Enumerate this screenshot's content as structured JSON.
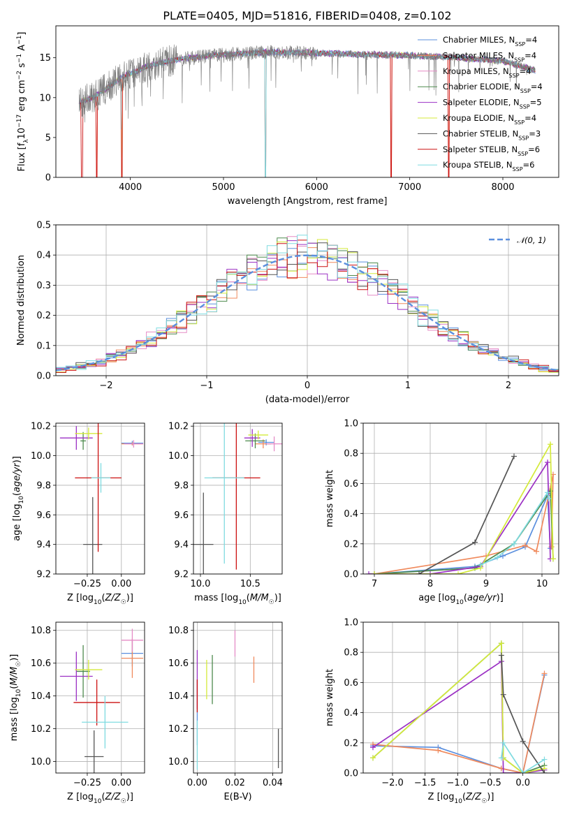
{
  "title": "PLATE=0405, MJD=51816, FIBERID=0408, z=0.102",
  "models": [
    {
      "name": "Chabrier MILES",
      "nssp": "4",
      "color": "#5b8fde"
    },
    {
      "name": "Salpeter MILES",
      "nssp": "4",
      "color": "#f08a5d"
    },
    {
      "name": "Kroupa MILES",
      "nssp": "4",
      "color": "#e58bc6"
    },
    {
      "name": "Chabrier ELODIE",
      "nssp": "4",
      "color": "#4d8a4d"
    },
    {
      "name": "Salpeter ELODIE",
      "nssp": "5",
      "color": "#9b30c4"
    },
    {
      "name": "Kroupa ELODIE",
      "nssp": "4",
      "color": "#d4ea3a"
    },
    {
      "name": "Chabrier STELIB",
      "nssp": "3",
      "color": "#555555"
    },
    {
      "name": "Salpeter STELIB",
      "nssp": "6",
      "color": "#cc1111"
    },
    {
      "name": "Kroupa STELIB",
      "nssp": "6",
      "color": "#7fdbe0"
    }
  ],
  "chart_data": [
    {
      "id": "spectrum",
      "type": "line",
      "xlabel": "wavelength [Angstrom, rest frame]",
      "ylabel": "Flux [f_λ 10^-17 erg cm^-2 s^-1 A^-1]",
      "xlim": [
        3200,
        8600
      ],
      "ylim": [
        0,
        19
      ],
      "xticks": [
        4000,
        5000,
        6000,
        7000,
        8000
      ],
      "yticks": [
        0,
        5,
        10,
        15
      ],
      "continuum": [
        [
          3450,
          9.5
        ],
        [
          3600,
          10.0
        ],
        [
          3750,
          11.2
        ],
        [
          3900,
          12.5
        ],
        [
          4000,
          13.0
        ],
        [
          4200,
          14.0
        ],
        [
          4500,
          14.8
        ],
        [
          5000,
          15.4
        ],
        [
          5500,
          15.7
        ],
        [
          6000,
          15.6
        ],
        [
          6500,
          15.4
        ],
        [
          7000,
          15.3
        ],
        [
          7500,
          15.0
        ],
        [
          8000,
          14.6
        ],
        [
          8350,
          13.4
        ]
      ],
      "drops": [
        3480,
        3640,
        3910,
        5450,
        6800,
        7420
      ]
    },
    {
      "id": "residuals",
      "type": "line",
      "xlabel": "(data-model)/error",
      "ylabel": "Normed distribution",
      "xlim": [
        -2.5,
        2.5
      ],
      "ylim": [
        0,
        0.5
      ],
      "xticks": [
        -2,
        -1,
        0,
        1,
        2
      ],
      "yticks": [
        0.0,
        0.1,
        0.2,
        0.3,
        0.4,
        0.5
      ],
      "legend": "𝒩(0, 1)",
      "reference": {
        "name": "𝒩(0, 1)",
        "color": "#5b8fde",
        "dash": true
      }
    },
    {
      "id": "age-vs-Z",
      "type": "scatter",
      "xlabel": "Z [log10(Z/Z☉)]",
      "ylabel": "age [log10(age/yr)]",
      "xlim": [
        -0.48,
        0.17
      ],
      "ylim": [
        9.2,
        10.22
      ],
      "xticks": [
        -0.25,
        0.0
      ],
      "yticks": [
        9.2,
        9.4,
        9.6,
        9.8,
        10.0,
        10.2
      ],
      "points": [
        {
          "m": 0,
          "x": 0.08,
          "y": 10.085,
          "ex": 0.08,
          "ey": 0.015
        },
        {
          "m": 1,
          "x": 0.08,
          "y": 10.08,
          "ex": 0.08,
          "ey": 0.01
        },
        {
          "m": 2,
          "x": 0.09,
          "y": 10.08,
          "ex": 0.07,
          "ey": 0.025
        },
        {
          "m": 3,
          "x": -0.28,
          "y": 10.1,
          "ex": 0.02,
          "ey": 0.06
        },
        {
          "m": 4,
          "x": -0.33,
          "y": 10.12,
          "ex": 0.12,
          "ey": 0.08
        },
        {
          "m": 5,
          "x": -0.24,
          "y": 10.15,
          "ex": 0.1,
          "ey": 0.04
        },
        {
          "m": 6,
          "x": -0.21,
          "y": 9.4,
          "ex": 0.07,
          "ey": 0.32
        },
        {
          "m": 7,
          "x": -0.17,
          "y": 9.85,
          "ex": 0.17,
          "ey": 0.5
        },
        {
          "m": 8,
          "x": -0.15,
          "y": 9.85,
          "ex": 0.07,
          "ey": 0.1
        }
      ]
    },
    {
      "id": "age-vs-mass",
      "type": "scatter",
      "xlabel": "mass [log10(M/M☉)]",
      "ylabel": "",
      "xlim": [
        9.93,
        10.82
      ],
      "ylim": [
        9.2,
        10.22
      ],
      "xticks": [
        10.0,
        10.5
      ],
      "yticks": [
        9.2,
        9.4,
        9.6,
        9.8,
        10.0,
        10.2
      ],
      "points": [
        {
          "m": 0,
          "x": 10.66,
          "y": 10.09,
          "ex": 0.08,
          "ey": 0.02
        },
        {
          "m": 1,
          "x": 10.63,
          "y": 10.08,
          "ex": 0.08,
          "ey": 0.03
        },
        {
          "m": 2,
          "x": 10.74,
          "y": 10.08,
          "ex": 0.08,
          "ey": 0.05
        },
        {
          "m": 3,
          "x": 10.55,
          "y": 10.1,
          "ex": 0.1,
          "ey": 0.05
        },
        {
          "m": 4,
          "x": 10.52,
          "y": 10.12,
          "ex": 0.08,
          "ey": 0.06
        },
        {
          "m": 5,
          "x": 10.58,
          "y": 10.14,
          "ex": 0.1,
          "ey": 0.03
        },
        {
          "m": 6,
          "x": 10.03,
          "y": 9.4,
          "ex": 0.1,
          "ey": 0.35
        },
        {
          "m": 7,
          "x": 10.36,
          "y": 9.85,
          "ex": 0.24,
          "ey": 0.62
        },
        {
          "m": 8,
          "x": 10.24,
          "y": 9.85,
          "ex": 0.2,
          "ey": 0.58
        }
      ]
    },
    {
      "id": "weight-vs-age",
      "type": "line",
      "xlabel": "age [log10(age/yr)]",
      "ylabel": "mass weight",
      "xlim": [
        6.8,
        10.3
      ],
      "ylim": [
        0,
        1.0
      ],
      "xticks": [
        7,
        8,
        9,
        10
      ],
      "yticks": [
        0.0,
        0.2,
        0.4,
        0.6,
        0.8,
        1.0
      ],
      "series": [
        {
          "m": 0,
          "x": [
            7.0,
            8.8,
            9.3,
            9.7,
            10.1,
            10.15
          ],
          "y": [
            0.0,
            0.05,
            0.12,
            0.18,
            0.52,
            0.17
          ]
        },
        {
          "m": 1,
          "x": [
            7.0,
            9.0,
            9.7,
            9.9,
            10.2,
            10.17
          ],
          "y": [
            0.0,
            0.12,
            0.19,
            0.15,
            0.66,
            0.18
          ]
        },
        {
          "m": 3,
          "x": [
            7.0,
            8.8,
            9.5,
            10.15,
            10.2
          ],
          "y": [
            0.0,
            0.04,
            0.2,
            0.55,
            0.1
          ]
        },
        {
          "m": 4,
          "x": [
            6.9,
            8.0,
            8.9,
            10.1,
            10.15
          ],
          "y": [
            0.0,
            0.0,
            0.05,
            0.74,
            0.1
          ]
        },
        {
          "m": 5,
          "x": [
            7.0,
            8.5,
            8.9,
            10.15,
            10.2
          ],
          "y": [
            0.0,
            0.0,
            0.04,
            0.86,
            0.1
          ]
        },
        {
          "m": 6,
          "x": [
            7.8,
            8.8,
            9.5
          ],
          "y": [
            0.0,
            0.21,
            0.78
          ]
        },
        {
          "m": 8,
          "x": [
            8.9,
            9.2,
            9.5,
            10.1,
            10.12
          ],
          "y": [
            0.06,
            0.11,
            0.2,
            0.54,
            0.5
          ]
        }
      ]
    },
    {
      "id": "mass-vs-Z",
      "type": "scatter",
      "xlabel": "Z [log10(Z/Z☉)]",
      "ylabel": "mass [log10(M/M☉)]",
      "xlim": [
        -0.48,
        0.17
      ],
      "ylim": [
        9.93,
        10.85
      ],
      "xticks": [
        -0.25,
        0.0
      ],
      "yticks": [
        10.0,
        10.2,
        10.4,
        10.6,
        10.8
      ],
      "points": [
        {
          "m": 0,
          "x": 0.08,
          "y": 10.66,
          "ex": 0.08,
          "ey": 0.08
        },
        {
          "m": 1,
          "x": 0.08,
          "y": 10.63,
          "ex": 0.08,
          "ey": 0.12
        },
        {
          "m": 2,
          "x": 0.08,
          "y": 10.74,
          "ex": 0.08,
          "ey": 0.07
        },
        {
          "m": 3,
          "x": -0.28,
          "y": 10.55,
          "ex": 0.05,
          "ey": 0.16
        },
        {
          "m": 4,
          "x": -0.33,
          "y": 10.52,
          "ex": 0.12,
          "ey": 0.15
        },
        {
          "m": 5,
          "x": -0.24,
          "y": 10.56,
          "ex": 0.1,
          "ey": 0.06
        },
        {
          "m": 6,
          "x": -0.2,
          "y": 10.03,
          "ex": 0.07,
          "ey": 0.16
        },
        {
          "m": 7,
          "x": -0.18,
          "y": 10.36,
          "ex": 0.17,
          "ey": 0.14
        },
        {
          "m": 8,
          "x": -0.12,
          "y": 10.24,
          "ex": 0.17,
          "ey": 0.16
        }
      ]
    },
    {
      "id": "mass-vs-EBV",
      "type": "scatter",
      "xlabel": "E(B-V)",
      "ylabel": "",
      "xlim": [
        -0.002,
        0.045
      ],
      "ylim": [
        9.93,
        10.85
      ],
      "xticks": [
        0.0,
        0.02,
        0.04
      ],
      "yticks": [
        10.0,
        10.2,
        10.4,
        10.6,
        10.8
      ],
      "points": [
        {
          "m": 0,
          "x": 0.0,
          "y": 10.3,
          "ex": 0.0,
          "ey": 0.2
        },
        {
          "m": 1,
          "x": 0.03,
          "y": 10.56,
          "ex": 0.0,
          "ey": 0.08
        },
        {
          "m": 2,
          "x": 0.02,
          "y": 10.72,
          "ex": 0.0,
          "ey": 0.08
        },
        {
          "m": 3,
          "x": 0.008,
          "y": 10.5,
          "ex": 0.0,
          "ey": 0.15
        },
        {
          "m": 4,
          "x": 0.0,
          "y": 10.5,
          "ex": 0.0,
          "ey": 0.18
        },
        {
          "m": 5,
          "x": 0.005,
          "y": 10.5,
          "ex": 0.0,
          "ey": 0.12
        },
        {
          "m": 6,
          "x": 0.043,
          "y": 10.08,
          "ex": 0.0,
          "ey": 0.12
        },
        {
          "m": 7,
          "x": 0.0,
          "y": 10.4,
          "ex": 0.0,
          "ey": 0.1
        },
        {
          "m": 8,
          "x": 0.0,
          "y": 10.1,
          "ex": 0.0,
          "ey": 0.15
        }
      ]
    },
    {
      "id": "weight-vs-Z",
      "type": "line",
      "xlabel": "Z [log10(Z/Z☉)]",
      "ylabel": "mass weight",
      "xlim": [
        -2.45,
        0.55
      ],
      "ylim": [
        0,
        1.0
      ],
      "xticks": [
        -2.0,
        -1.5,
        -1.0,
        -0.5,
        0.0
      ],
      "yticks": [
        0.0,
        0.2,
        0.4,
        0.6,
        0.8,
        1.0
      ],
      "series": [
        {
          "m": 0,
          "x": [
            -2.3,
            -1.3,
            -0.33,
            0.0,
            0.33
          ],
          "y": [
            0.18,
            0.17,
            0.03,
            0.0,
            0.65
          ]
        },
        {
          "m": 1,
          "x": [
            -2.3,
            -1.3,
            -0.33,
            0.0,
            0.33
          ],
          "y": [
            0.19,
            0.15,
            0.03,
            0.0,
            0.66
          ]
        },
        {
          "m": 3,
          "x": [
            -2.3,
            -0.33,
            -0.3,
            0.0,
            0.33
          ],
          "y": [
            0.1,
            0.86,
            0.1,
            0.0,
            0.05
          ]
        },
        {
          "m": 4,
          "x": [
            -2.3,
            -0.33,
            -0.3,
            0.0,
            0.33
          ],
          "y": [
            0.17,
            0.74,
            0.0,
            0.0,
            0.02
          ]
        },
        {
          "m": 5,
          "x": [
            -2.3,
            -0.33,
            -0.3,
            0.0,
            0.33
          ],
          "y": [
            0.1,
            0.86,
            0.1,
            0.0,
            0.03
          ]
        },
        {
          "m": 6,
          "x": [
            -0.33,
            -0.3,
            0.0,
            0.33
          ],
          "y": [
            0.78,
            0.52,
            0.21,
            0.0
          ]
        },
        {
          "m": 8,
          "x": [
            -0.33,
            -0.3,
            0.0,
            0.33
          ],
          "y": [
            0.1,
            0.2,
            0.0,
            0.09
          ]
        }
      ]
    }
  ]
}
